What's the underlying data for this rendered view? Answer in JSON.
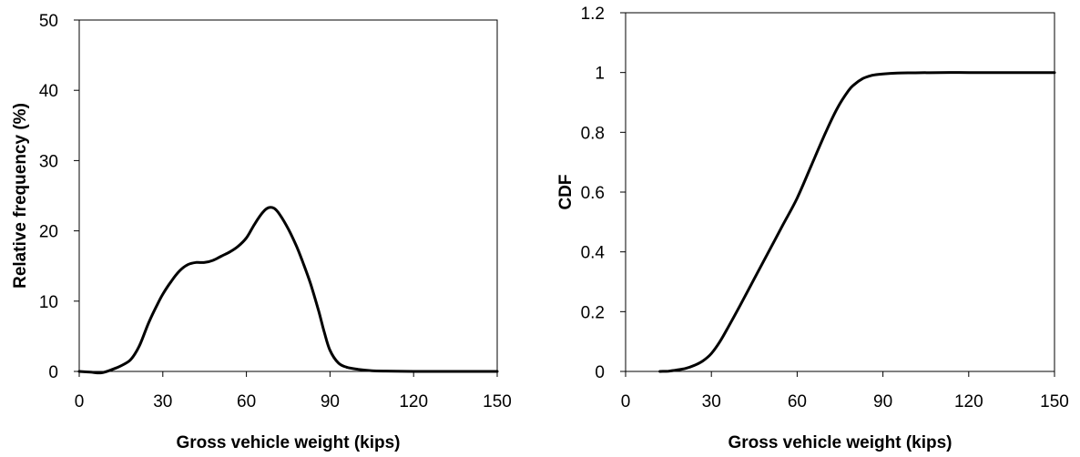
{
  "chart_data": [
    {
      "type": "line",
      "title": "",
      "xlabel": "Gross vehicle weight (kips)",
      "ylabel": "Relative frequency (%)",
      "xlim": [
        0,
        150
      ],
      "ylim": [
        0,
        50
      ],
      "xticks": [
        0,
        30,
        60,
        90,
        120,
        150
      ],
      "yticks": [
        0,
        10,
        20,
        30,
        40,
        50
      ],
      "xtick_labels": [
        "0",
        "30",
        "60",
        "90",
        "120",
        "150"
      ],
      "ytick_labels": [
        "0",
        "10",
        "20",
        "30",
        "40",
        "50"
      ],
      "grid": false,
      "legend": "none",
      "series": [
        {
          "color": "#000000",
          "x": [
            0,
            4,
            8,
            12,
            15,
            18,
            20,
            22,
            25,
            28,
            30,
            33,
            36,
            39,
            42,
            45,
            48,
            51,
            54,
            57,
            60,
            63,
            66,
            68,
            70,
            72,
            75,
            78,
            80,
            83,
            86,
            88,
            90,
            93,
            96,
            100,
            105,
            110,
            120,
            130,
            140,
            150
          ],
          "y": [
            0,
            -0.1,
            -0.2,
            0.3,
            0.8,
            1.5,
            2.5,
            4.0,
            7.0,
            9.5,
            11.0,
            12.8,
            14.3,
            15.2,
            15.5,
            15.5,
            15.8,
            16.4,
            17.0,
            17.8,
            19.0,
            21.0,
            22.7,
            23.3,
            23.2,
            22.3,
            20.3,
            17.8,
            15.8,
            12.5,
            8.5,
            5.5,
            3.0,
            1.2,
            0.6,
            0.3,
            0.1,
            0.05,
            0,
            0,
            0,
            0
          ]
        }
      ]
    },
    {
      "type": "line",
      "title": "",
      "xlabel": "Gross vehicle weight (kips)",
      "ylabel": "CDF",
      "xlim": [
        0,
        150
      ],
      "ylim": [
        0,
        1.2
      ],
      "xticks": [
        0,
        30,
        60,
        90,
        120,
        150
      ],
      "yticks": [
        0,
        0.2,
        0.4,
        0.6,
        0.8,
        1.0,
        1.2
      ],
      "xtick_labels": [
        "0",
        "30",
        "60",
        "90",
        "120",
        "150"
      ],
      "ytick_labels": [
        "0",
        "0.2",
        "0.4",
        "0.6",
        "0.8",
        "1",
        "1.2"
      ],
      "grid": false,
      "legend": "none",
      "series": [
        {
          "color": "#000000",
          "x": [
            12,
            15,
            18,
            21,
            24,
            27,
            30,
            33,
            36,
            40,
            45,
            50,
            55,
            60,
            65,
            70,
            74,
            78,
            80,
            83,
            86,
            90,
            95,
            100,
            110,
            120,
            130,
            140,
            150
          ],
          "y": [
            0,
            0.001,
            0.005,
            0.01,
            0.02,
            0.035,
            0.06,
            0.1,
            0.15,
            0.22,
            0.31,
            0.4,
            0.49,
            0.58,
            0.69,
            0.8,
            0.88,
            0.94,
            0.96,
            0.98,
            0.99,
            0.995,
            0.998,
            0.999,
            1.0,
            1.0,
            1.0,
            1.0,
            1.0
          ]
        }
      ]
    }
  ]
}
